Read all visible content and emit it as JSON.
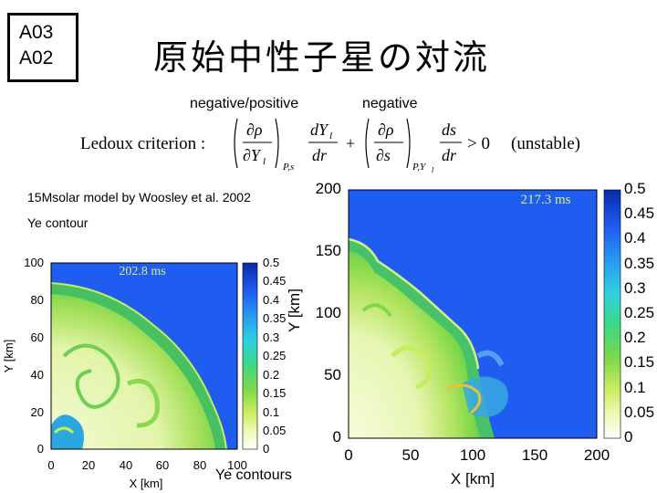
{
  "slide": {
    "badge_line1": "A03",
    "badge_line2": "A02",
    "title": "原始中性子星の対流",
    "label_negpos": "negative/positive",
    "label_neg": "negative",
    "formula": {
      "lhs": "Ledoux criterion :",
      "condition": "> 0",
      "note": "(unstable)",
      "sub1": "P,s",
      "sub2": "P,Y",
      "sub2b": "l"
    },
    "model_text": "15Msolar model by Woosley et al. 2002",
    "ye_contour": "Ye contour",
    "ye_contours_caption": "Ye contours"
  },
  "small_plot": {
    "time_label": "202.8 ms",
    "xlabel": "X [km]",
    "ylabel": "Y [km]",
    "x_ticks": [
      "0",
      "20",
      "40",
      "60",
      "80",
      "100"
    ],
    "y_ticks": [
      "0",
      "20",
      "40",
      "60",
      "80",
      "100"
    ],
    "colorbar_ticks": [
      "0.5",
      "0.45",
      "0.4",
      "0.35",
      "0.3",
      "0.25",
      "0.2",
      "0.15",
      "0.1",
      "0.05",
      "0"
    ]
  },
  "large_plot": {
    "time_label": "217.3 ms",
    "xlabel": "X [km]",
    "ylabel": "Y [km]",
    "x_ticks": [
      "0",
      "50",
      "100",
      "150",
      "200"
    ],
    "y_ticks": [
      "0",
      "50",
      "100",
      "150",
      "200"
    ],
    "colorbar_ticks": [
      "0.5",
      "0.45",
      "0.4",
      "0.35",
      "0.3",
      "0.25",
      "0.2",
      "0.15",
      "0.1",
      "0.05",
      "0"
    ]
  },
  "colors": {
    "field_blue": "#1f5cf0",
    "field_green": "#7ed84a",
    "field_light": "#e8f6b0",
    "field_cyan": "#30b8e8"
  }
}
